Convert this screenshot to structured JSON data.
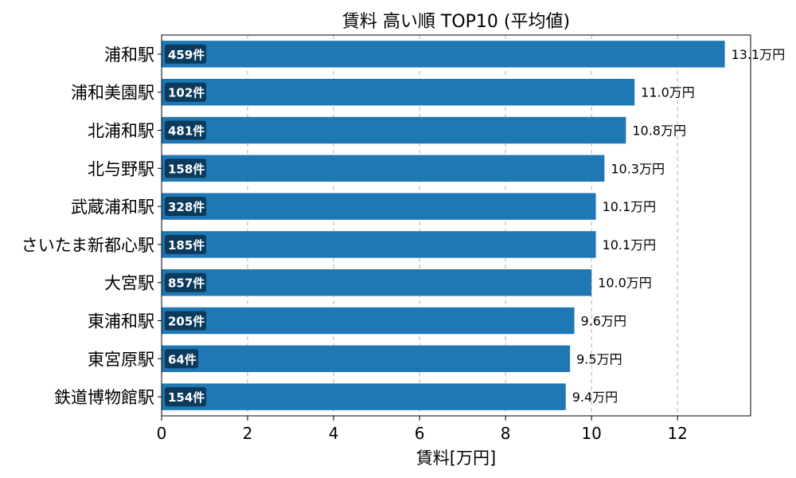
{
  "chart_data": {
    "type": "bar",
    "orientation": "horizontal",
    "title": "賃料 高い順 TOP10 (平均値)",
    "xlabel": "賃料[万円]",
    "ylabel": "",
    "xlim": [
      0,
      13.7
    ],
    "xticks": [
      0,
      2,
      4,
      6,
      8,
      10,
      12
    ],
    "grid": "x-dashed",
    "bar_color": "#1f77b4",
    "badge_color": "#0b3a5c",
    "categories": [
      "浦和駅",
      "浦和美園駅",
      "北浦和駅",
      "北与野駅",
      "武蔵浦和駅",
      "さいたま新都心駅",
      "大宮駅",
      "東浦和駅",
      "東宮原駅",
      "鉄道博物館駅"
    ],
    "values": [
      13.1,
      11.0,
      10.8,
      10.3,
      10.1,
      10.1,
      10.0,
      9.6,
      9.5,
      9.4
    ],
    "value_labels": [
      "13.1万円",
      "11.0万円",
      "10.8万円",
      "10.3万円",
      "10.1万円",
      "10.1万円",
      "10.0万円",
      "9.6万円",
      "9.5万円",
      "9.4万円"
    ],
    "counts": [
      "459件",
      "102件",
      "481件",
      "158件",
      "328件",
      "185件",
      "857件",
      "205件",
      "64件",
      "154件"
    ]
  }
}
